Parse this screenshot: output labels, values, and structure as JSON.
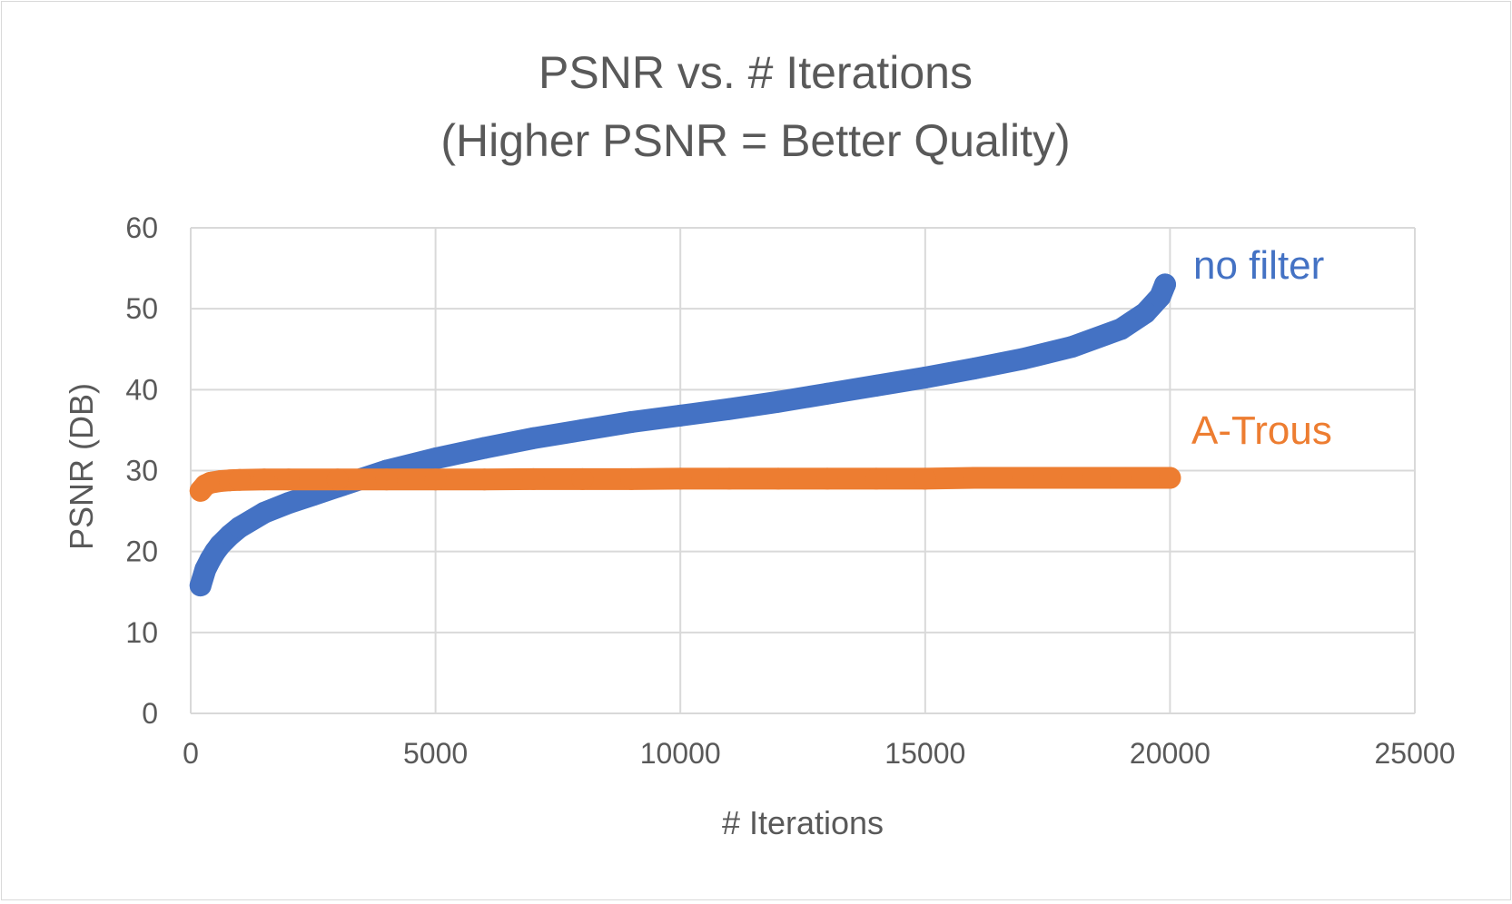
{
  "chart_data": {
    "type": "scatter",
    "title": "PSNR vs. # Iterations",
    "subtitle": "(Higher PSNR = Better Quality)",
    "xlabel": "# Iterations",
    "ylabel": "PSNR (DB)",
    "xlim": [
      0,
      25000
    ],
    "ylim": [
      0,
      60
    ],
    "x_ticks": [
      "0",
      "5000",
      "10000",
      "15000",
      "20000",
      "25000"
    ],
    "y_ticks": [
      "0",
      "10",
      "20",
      "30",
      "40",
      "50",
      "60"
    ],
    "grid": true,
    "legend": "series labels placed at line ends",
    "series": [
      {
        "name": "no filter",
        "color": "#4472C4",
        "x": [
          200,
          300,
          400,
          500,
          600,
          800,
          1000,
          1500,
          2000,
          2500,
          3000,
          3500,
          4000,
          5000,
          6000,
          7000,
          8000,
          9000,
          10000,
          11000,
          12000,
          13000,
          14000,
          15000,
          16000,
          17000,
          18000,
          19000,
          19500,
          19800,
          19900
        ],
        "y": [
          15.8,
          17.8,
          19.0,
          20.0,
          20.8,
          22.0,
          23.0,
          24.8,
          26.0,
          27.0,
          28.0,
          29.0,
          30.0,
          31.5,
          32.8,
          34.0,
          35.0,
          36.0,
          36.8,
          37.6,
          38.5,
          39.5,
          40.5,
          41.5,
          42.6,
          43.8,
          45.3,
          47.5,
          49.5,
          51.5,
          53.0
        ]
      },
      {
        "name": "A-Trous",
        "color": "#ED7D31",
        "x": [
          200,
          300,
          400,
          600,
          800,
          1000,
          1500,
          2000,
          3000,
          4000,
          5000,
          6000,
          7000,
          8000,
          9000,
          10000,
          11000,
          12000,
          13000,
          14000,
          15000,
          16000,
          17000,
          18000,
          19000,
          20000
        ],
        "y": [
          27.5,
          28.2,
          28.5,
          28.7,
          28.8,
          28.85,
          28.9,
          28.9,
          28.9,
          28.9,
          28.9,
          28.9,
          28.95,
          28.95,
          28.95,
          29.0,
          29.0,
          29.0,
          29.0,
          29.0,
          29.0,
          29.1,
          29.1,
          29.1,
          29.1,
          29.1
        ]
      }
    ]
  }
}
